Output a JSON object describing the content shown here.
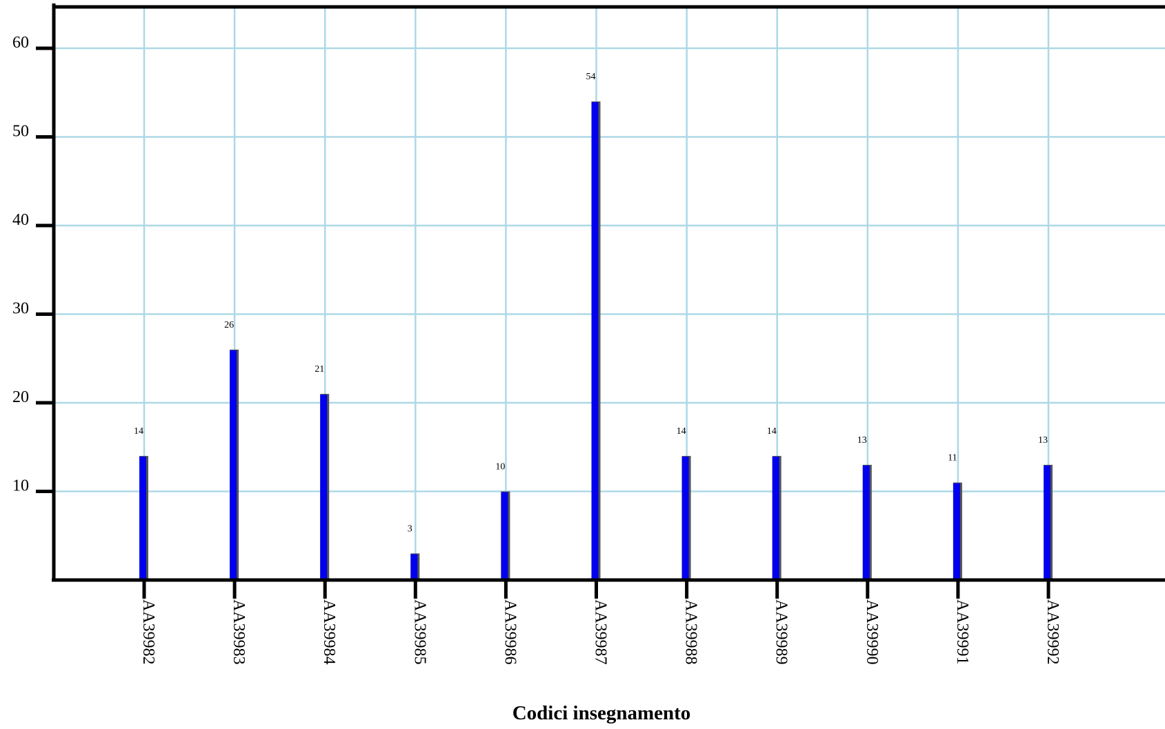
{
  "chart_data": {
    "type": "bar",
    "title": "",
    "xlabel": "Codici insegnamento",
    "ylabel": "",
    "categories": [
      "AA39982",
      "AA39983",
      "AA39984",
      "AA39985",
      "AA39986",
      "AA39987",
      "AA39988",
      "AA39989",
      "AA39990",
      "AA39991",
      "AA39992"
    ],
    "values": [
      14,
      26,
      21,
      3,
      10,
      54,
      14,
      14,
      13,
      11,
      13
    ],
    "data_labels": [
      "14",
      "26",
      "21",
      "3",
      "10",
      "54",
      "14",
      "14",
      "13",
      "11",
      "13"
    ],
    "ylim": [
      0,
      65
    ],
    "yticks": [
      10,
      20,
      30,
      40,
      50,
      60
    ],
    "ytick_labels": [
      "10",
      "20",
      "30",
      "40",
      "50",
      "60"
    ],
    "grid": true,
    "legend": "none",
    "colors": {
      "bar": "#0000ee",
      "bar_shadow": "#555555",
      "grid": "#add8e6",
      "axis": "#000000"
    }
  }
}
